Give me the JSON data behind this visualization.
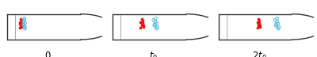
{
  "panels": [
    {
      "label": "0",
      "red_x": [
        0.175,
        0.185,
        0.165,
        0.18,
        0.17,
        0.18,
        0.168,
        0.185,
        0.172
      ],
      "red_y": [
        0.58,
        0.68,
        0.72,
        0.5,
        0.62,
        0.78,
        0.45,
        0.55,
        0.85
      ],
      "blue_x": [
        0.21,
        0.22,
        0.205,
        0.215,
        0.21,
        0.22,
        0.205,
        0.215
      ],
      "blue_y": [
        0.55,
        0.65,
        0.72,
        0.48,
        0.8,
        0.42,
        0.6,
        0.87
      ]
    },
    {
      "label": "$t_0$",
      "red_x": [
        0.33,
        0.34,
        0.32,
        0.35,
        0.33,
        0.34,
        0.32,
        0.35,
        0.33
      ],
      "red_y": [
        0.58,
        0.68,
        0.72,
        0.5,
        0.62,
        0.78,
        0.45,
        0.55,
        0.85
      ],
      "blue_x": [
        0.46,
        0.48,
        0.47,
        0.49,
        0.45,
        0.48,
        0.46,
        0.47
      ],
      "blue_y": [
        0.55,
        0.65,
        0.72,
        0.48,
        0.8,
        0.42,
        0.6,
        0.87
      ]
    },
    {
      "label": "$2t_0$",
      "red_x": [
        0.44,
        0.45,
        0.43,
        0.46,
        0.44,
        0.45,
        0.43,
        0.46,
        0.44
      ],
      "red_y": [
        0.58,
        0.68,
        0.72,
        0.5,
        0.62,
        0.78,
        0.45,
        0.55,
        0.85
      ],
      "blue_x": [
        0.62,
        0.64,
        0.63,
        0.65,
        0.61,
        0.64,
        0.62,
        0.63
      ],
      "blue_y": [
        0.55,
        0.65,
        0.72,
        0.48,
        0.8,
        0.42,
        0.6,
        0.87
      ]
    }
  ],
  "red_color": "#ee1111",
  "blue_color": "#55bbdd",
  "tube_color": "#333333",
  "bg_color": "#ffffff",
  "dot_size": 7,
  "open_dot_size": 7,
  "label_fontsize": 8.5
}
